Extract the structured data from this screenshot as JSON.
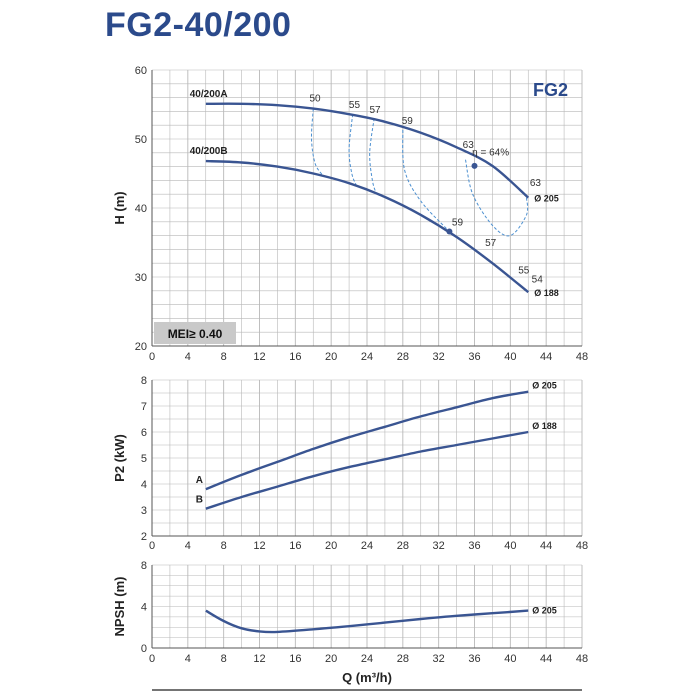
{
  "title": "FG2-40/200",
  "chart_data": [
    {
      "type": "line",
      "name": "head",
      "ylabel": "H (m)",
      "xlabel": "",
      "xlim": [
        0,
        48
      ],
      "ylim": [
        20,
        60
      ],
      "xticks": [
        0,
        4,
        8,
        12,
        16,
        20,
        24,
        28,
        32,
        36,
        40,
        44,
        48
      ],
      "yticks": [
        20,
        30,
        40,
        50,
        60
      ],
      "grid": true,
      "badge": "FG2",
      "mei": "MEI≥ 0.40",
      "series": [
        {
          "name": "40/200A",
          "end_label": "Ø 205",
          "points": [
            [
              6,
              55.1
            ],
            [
              10,
              55.1
            ],
            [
              14,
              54.9
            ],
            [
              18,
              54.4
            ],
            [
              22,
              53.6
            ],
            [
              26,
              52.5
            ],
            [
              30,
              50.9
            ],
            [
              34,
              48.8
            ],
            [
              38,
              46.1
            ],
            [
              42,
              41.5
            ]
          ]
        },
        {
          "name": "40/200B",
          "end_label": "Ø 188",
          "points": [
            [
              6,
              46.8
            ],
            [
              10,
              46.6
            ],
            [
              14,
              46.0
            ],
            [
              18,
              45.0
            ],
            [
              22,
              43.6
            ],
            [
              26,
              41.6
            ],
            [
              30,
              39.0
            ],
            [
              34,
              35.8
            ],
            [
              38,
              32.0
            ],
            [
              42,
              27.8
            ]
          ]
        }
      ],
      "efficiency_labels": [
        {
          "text": "50",
          "x": 18.2,
          "y": 55.4
        },
        {
          "text": "55",
          "x": 22.6,
          "y": 54.5
        },
        {
          "text": "57",
          "x": 24.9,
          "y": 53.8
        },
        {
          "text": "59",
          "x": 28.5,
          "y": 52.2
        },
        {
          "text": "63",
          "x": 35.3,
          "y": 48.7
        },
        {
          "text": "η = 64%",
          "x": 37.8,
          "y": 47.6
        },
        {
          "text": "63",
          "x": 42.8,
          "y": 43.2
        },
        {
          "text": "59",
          "x": 34.1,
          "y": 37.5
        },
        {
          "text": "57",
          "x": 37.8,
          "y": 34.5
        },
        {
          "text": "55",
          "x": 41.5,
          "y": 30.5
        },
        {
          "text": "54",
          "x": 43.0,
          "y": 29.2
        }
      ],
      "best_efficiency_points": [
        [
          36.0,
          46.1
        ],
        [
          33.2,
          36.6
        ]
      ],
      "iso_efficiency_lines": [
        {
          "points": [
            [
              18,
              54.4
            ],
            [
              17.8,
              50.0
            ],
            [
              18.2,
              46.5
            ],
            [
              19,
              44.8
            ]
          ]
        },
        {
          "points": [
            [
              22.4,
              53.6
            ],
            [
              22.0,
              48.5
            ],
            [
              22.3,
              45.0
            ],
            [
              22.8,
              43.3
            ]
          ]
        },
        {
          "points": [
            [
              24.8,
              53.0
            ],
            [
              24.3,
              48.0
            ],
            [
              24.6,
              44.0
            ],
            [
              25,
              42.2
            ]
          ]
        },
        {
          "points": [
            [
              28,
              51.3
            ],
            [
              28.2,
              45.5
            ],
            [
              30,
              41.0
            ],
            [
              33.2,
              36.6
            ]
          ]
        },
        {
          "points": [
            [
              35.0,
              47.0
            ],
            [
              35.8,
              42.0
            ],
            [
              38.0,
              37.5
            ],
            [
              40.0,
              36.0
            ],
            [
              41.8,
              39.0
            ],
            [
              41.8,
              41.5
            ]
          ]
        }
      ]
    },
    {
      "type": "line",
      "name": "power",
      "ylabel": "P2 (kW)",
      "xlabel": "",
      "xlim": [
        0,
        48
      ],
      "ylim": [
        2,
        8
      ],
      "xticks": [
        0,
        4,
        8,
        12,
        16,
        20,
        24,
        28,
        32,
        36,
        40,
        44,
        48
      ],
      "yticks": [
        2,
        3,
        4,
        5,
        6,
        7,
        8
      ],
      "grid": true,
      "series": [
        {
          "name": "A",
          "end_label": "Ø 205",
          "points": [
            [
              6,
              3.8
            ],
            [
              10,
              4.35
            ],
            [
              14,
              4.85
            ],
            [
              18,
              5.35
            ],
            [
              22,
              5.8
            ],
            [
              26,
              6.2
            ],
            [
              30,
              6.6
            ],
            [
              34,
              6.95
            ],
            [
              38,
              7.3
            ],
            [
              42,
              7.55
            ]
          ]
        },
        {
          "name": "B",
          "end_label": "Ø 188",
          "points": [
            [
              6,
              3.05
            ],
            [
              10,
              3.5
            ],
            [
              14,
              3.9
            ],
            [
              18,
              4.3
            ],
            [
              22,
              4.65
            ],
            [
              26,
              4.95
            ],
            [
              30,
              5.25
            ],
            [
              34,
              5.5
            ],
            [
              38,
              5.75
            ],
            [
              42,
              6.0
            ]
          ]
        }
      ]
    },
    {
      "type": "line",
      "name": "npsh",
      "ylabel": "NPSH (m)",
      "xlabel": "Q (m³/h)",
      "xlim": [
        0,
        48
      ],
      "ylim": [
        0,
        8
      ],
      "xticks": [
        0,
        4,
        8,
        12,
        16,
        20,
        24,
        28,
        32,
        36,
        40,
        44,
        48
      ],
      "yticks": [
        0,
        4,
        8
      ],
      "grid": true,
      "series": [
        {
          "name": "",
          "end_label": "Ø 205",
          "points": [
            [
              6,
              3.6
            ],
            [
              8,
              2.6
            ],
            [
              10,
              1.9
            ],
            [
              12,
              1.6
            ],
            [
              14,
              1.55
            ],
            [
              18,
              1.8
            ],
            [
              22,
              2.1
            ],
            [
              26,
              2.45
            ],
            [
              30,
              2.8
            ],
            [
              34,
              3.1
            ],
            [
              38,
              3.35
            ],
            [
              42,
              3.6
            ]
          ]
        }
      ]
    }
  ],
  "colors": {
    "title": "#2b4a8b",
    "curve": "#3a5592",
    "iso": "#4b8fd0",
    "grid": "#b8b8b8",
    "frame": "#555555",
    "badge_bg": "#c9c9c9"
  }
}
